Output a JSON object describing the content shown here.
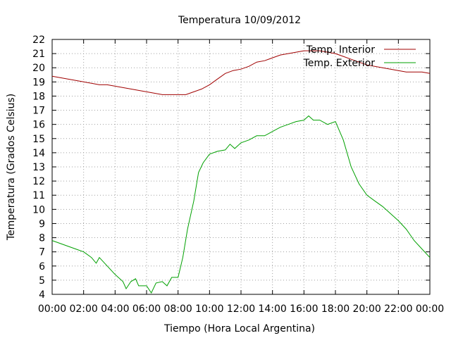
{
  "chart_data": {
    "type": "line",
    "title": "Temperatura 10/09/2012",
    "xlabel": "Tiempo (Hora Local Argentina)",
    "ylabel": "Temperatura (Grados Celsius)",
    "xlim": [
      0,
      24
    ],
    "ylim": [
      4,
      22
    ],
    "x_ticks": [
      "00:00",
      "02:00",
      "04:00",
      "06:00",
      "08:00",
      "10:00",
      "12:00",
      "14:00",
      "16:00",
      "18:00",
      "20:00",
      "22:00",
      "00:00"
    ],
    "y_ticks": [
      4,
      5,
      6,
      7,
      8,
      9,
      10,
      11,
      12,
      13,
      14,
      15,
      16,
      17,
      18,
      19,
      20,
      21,
      22
    ],
    "grid": true,
    "legend_position": "top-right",
    "series": [
      {
        "name": "Temp. Interior",
        "color": "#a00000",
        "x": [
          0,
          0.5,
          1,
          1.5,
          2,
          2.5,
          3,
          3.5,
          4,
          4.5,
          5,
          5.5,
          6,
          6.5,
          7,
          7.5,
          8,
          8.5,
          9,
          9.5,
          10,
          10.5,
          11,
          11.5,
          12,
          12.5,
          13,
          13.5,
          14,
          14.5,
          15,
          15.5,
          16,
          16.5,
          17,
          17.5,
          18,
          18.5,
          19,
          19.5,
          20,
          20.5,
          21,
          21.5,
          22,
          22.5,
          23,
          23.5,
          24
        ],
        "y": [
          19.4,
          19.3,
          19.2,
          19.1,
          19.0,
          18.9,
          18.8,
          18.8,
          18.7,
          18.6,
          18.5,
          18.4,
          18.3,
          18.2,
          18.1,
          18.1,
          18.1,
          18.1,
          18.3,
          18.5,
          18.8,
          19.2,
          19.6,
          19.8,
          19.9,
          20.1,
          20.4,
          20.5,
          20.7,
          20.9,
          21.0,
          21.1,
          21.2,
          21.2,
          21.2,
          21.1,
          21.0,
          20.8,
          20.6,
          20.4,
          20.2,
          20.1,
          20.0,
          19.9,
          19.8,
          19.7,
          19.7,
          19.7,
          19.6
        ]
      },
      {
        "name": "Temp. Exterior",
        "color": "#00a000",
        "x": [
          0,
          0.5,
          1,
          1.5,
          2,
          2.5,
          2.8,
          3,
          3.5,
          4,
          4.5,
          4.7,
          5,
          5.3,
          5.5,
          6,
          6.3,
          6.6,
          7,
          7.3,
          7.6,
          8,
          8.3,
          8.6,
          9,
          9.3,
          9.6,
          10,
          10.5,
          11,
          11.3,
          11.6,
          12,
          12.5,
          13,
          13.5,
          14,
          14.5,
          15,
          15.5,
          16,
          16.3,
          16.6,
          17,
          17.5,
          18,
          18.5,
          19,
          19.5,
          20,
          20.5,
          21,
          21.5,
          22,
          22.5,
          23,
          23.5,
          24
        ],
        "y": [
          7.8,
          7.6,
          7.4,
          7.2,
          7.0,
          6.6,
          6.2,
          6.6,
          6.0,
          5.4,
          4.9,
          4.4,
          4.9,
          5.1,
          4.6,
          4.6,
          4.1,
          4.8,
          4.9,
          4.6,
          5.2,
          5.2,
          6.6,
          8.6,
          10.6,
          12.6,
          13.3,
          13.9,
          14.1,
          14.2,
          14.6,
          14.3,
          14.7,
          14.9,
          15.2,
          15.2,
          15.5,
          15.8,
          16.0,
          16.2,
          16.3,
          16.6,
          16.3,
          16.3,
          16.0,
          16.2,
          14.9,
          13.0,
          11.8,
          11.0,
          10.6,
          10.2,
          9.7,
          9.2,
          8.6,
          7.8,
          7.2,
          6.6
        ]
      }
    ]
  }
}
